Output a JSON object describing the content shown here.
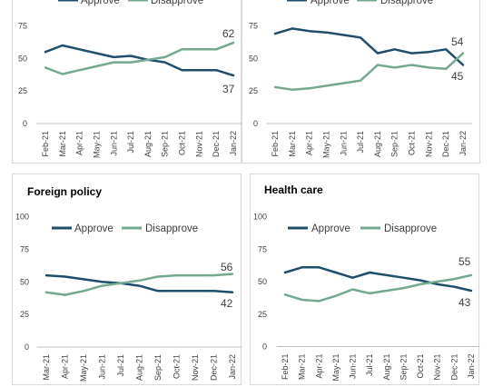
{
  "colors": {
    "approve": "#1f4e6b",
    "disapprove": "#74a98f"
  },
  "legend": {
    "approve": "Approve",
    "disapprove": "Disapprove"
  },
  "chart_data": [
    {
      "type": "line",
      "title": "",
      "ylim": [
        0,
        75
      ],
      "yticks": [
        "0",
        "25",
        "50",
        "75"
      ],
      "categories": [
        "Feb-21",
        "Mar-21",
        "Apr-21",
        "May-21",
        "Jun-21",
        "Jul-21",
        "Aug-21",
        "Sep-21",
        "Oct-21",
        "Nov-21",
        "Dec-21",
        "Jan-22"
      ],
      "series": [
        {
          "name": "Approve",
          "values": [
            55,
            60,
            57,
            54,
            51,
            52,
            49,
            47,
            41,
            41,
            41,
            37
          ]
        },
        {
          "name": "Disapprove",
          "values": [
            43,
            38,
            41,
            44,
            47,
            47,
            49,
            51,
            57,
            57,
            57,
            62
          ]
        }
      ],
      "end_labels": {
        "approve": "37",
        "disapprove": "62"
      },
      "legend_visible": true
    },
    {
      "type": "line",
      "title": "",
      "ylim": [
        0,
        75
      ],
      "yticks": [
        "0",
        "25",
        "50",
        "75"
      ],
      "categories": [
        "Feb-21",
        "Mar-21",
        "Apr-21",
        "May-21",
        "Jun-21",
        "Jul-21",
        "Aug-21",
        "Sep-21",
        "Oct-21",
        "Nov-21",
        "Dec-21",
        "Jan-22"
      ],
      "series": [
        {
          "name": "Approve",
          "values": [
            69,
            73,
            71,
            70,
            68,
            66,
            54,
            57,
            54,
            55,
            57,
            45
          ]
        },
        {
          "name": "Disapprove",
          "values": [
            28,
            26,
            27,
            29,
            31,
            33,
            45,
            43,
            45,
            43,
            42,
            54
          ]
        }
      ],
      "end_labels": {
        "approve": "45",
        "disapprove": "54"
      },
      "legend_visible": true
    },
    {
      "type": "line",
      "title": "Foreign policy",
      "ylim": [
        0,
        100
      ],
      "yticks": [
        "0",
        "25",
        "50",
        "75",
        "100"
      ],
      "categories": [
        "Mar-21",
        "Apr-21",
        "May-21",
        "Jun-21",
        "Jul-21",
        "Aug-21",
        "Sep-21",
        "Oct-21",
        "Nov-21",
        "Dec-21",
        "Jan-22"
      ],
      "series": [
        {
          "name": "Approve",
          "values": [
            55,
            54,
            52,
            50,
            49,
            47,
            43,
            43,
            43,
            43,
            42
          ]
        },
        {
          "name": "Disapprove",
          "values": [
            42,
            40,
            43,
            47,
            49,
            51,
            54,
            55,
            55,
            55,
            56
          ]
        }
      ],
      "end_labels": {
        "approve": "42",
        "disapprove": "56"
      },
      "legend_visible": true
    },
    {
      "type": "line",
      "title": "Health care",
      "ylim": [
        0,
        100
      ],
      "yticks": [
        "0",
        "25",
        "50",
        "75",
        "100"
      ],
      "categories": [
        "Feb-21",
        "Mar-21",
        "Apr-21",
        "May-21",
        "Jun-21",
        "Jul-21",
        "Aug-21",
        "Sep-21",
        "Oct-21",
        "Nov-21",
        "Dec-21",
        "Jan-22"
      ],
      "series": [
        {
          "name": "Approve",
          "values": [
            57,
            61,
            61,
            57,
            53,
            57,
            55,
            53,
            51,
            48,
            46,
            43
          ]
        },
        {
          "name": "Disapprove",
          "values": [
            40,
            36,
            35,
            39,
            44,
            41,
            43,
            45,
            48,
            50,
            52,
            55
          ]
        }
      ],
      "end_labels": {
        "approve": "43",
        "disapprove": "55"
      },
      "legend_visible": true
    }
  ]
}
